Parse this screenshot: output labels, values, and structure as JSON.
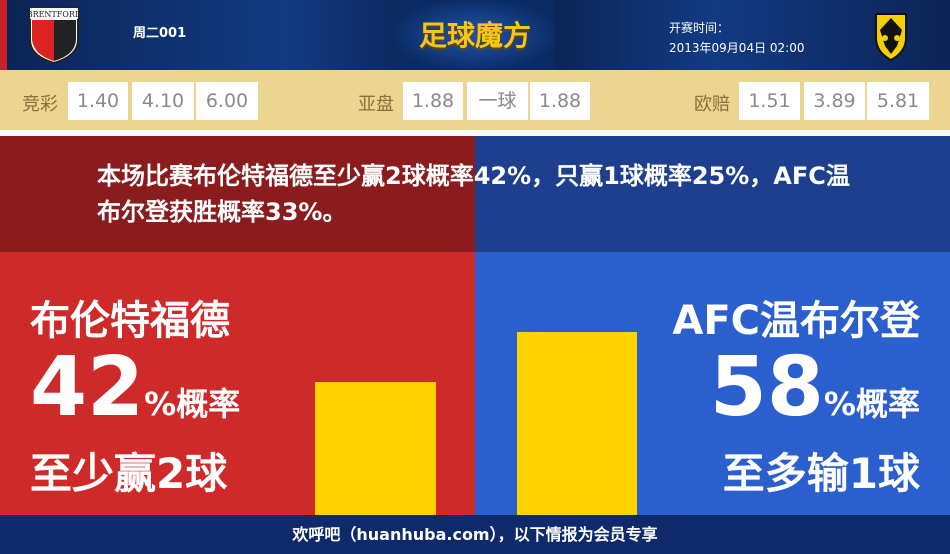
{
  "header": {
    "match_no": "周二001",
    "brand": "足球魔方",
    "kickoff_label": "开赛时间：",
    "kickoff_time": "2013年09月04日 02:00",
    "home_logo_text": "BRENTFORD",
    "away_logo_text": "AFC"
  },
  "odds": {
    "jingcai": {
      "label": "竞彩",
      "values": [
        "1.40",
        "4.10",
        "6.00"
      ]
    },
    "yapan": {
      "label": "亚盘",
      "values": [
        "1.88",
        "一球",
        "1.88"
      ]
    },
    "oupei": {
      "label": "欧赔",
      "values": [
        "1.51",
        "3.89",
        "5.81"
      ]
    }
  },
  "summary": "本场比赛布伦特福德至少赢2球概率42%，只赢1球概率25%，AFC温布尔登获胜概率33%。",
  "home": {
    "name": "布伦特福德",
    "percent": "42",
    "percent_suffix": "%概率",
    "outcome": "至少赢2球",
    "color": "#cf2a2a"
  },
  "away": {
    "name": "AFC温布尔登",
    "percent": "58",
    "percent_suffix": "%概率",
    "outcome": "至多输1球",
    "color": "#2b5fce"
  },
  "bars": {
    "home_value": 42,
    "away_value": 58,
    "color": "#ffd200"
  },
  "footer": "欢呼吧（huanhuba.com），以下情报为会员专享"
}
